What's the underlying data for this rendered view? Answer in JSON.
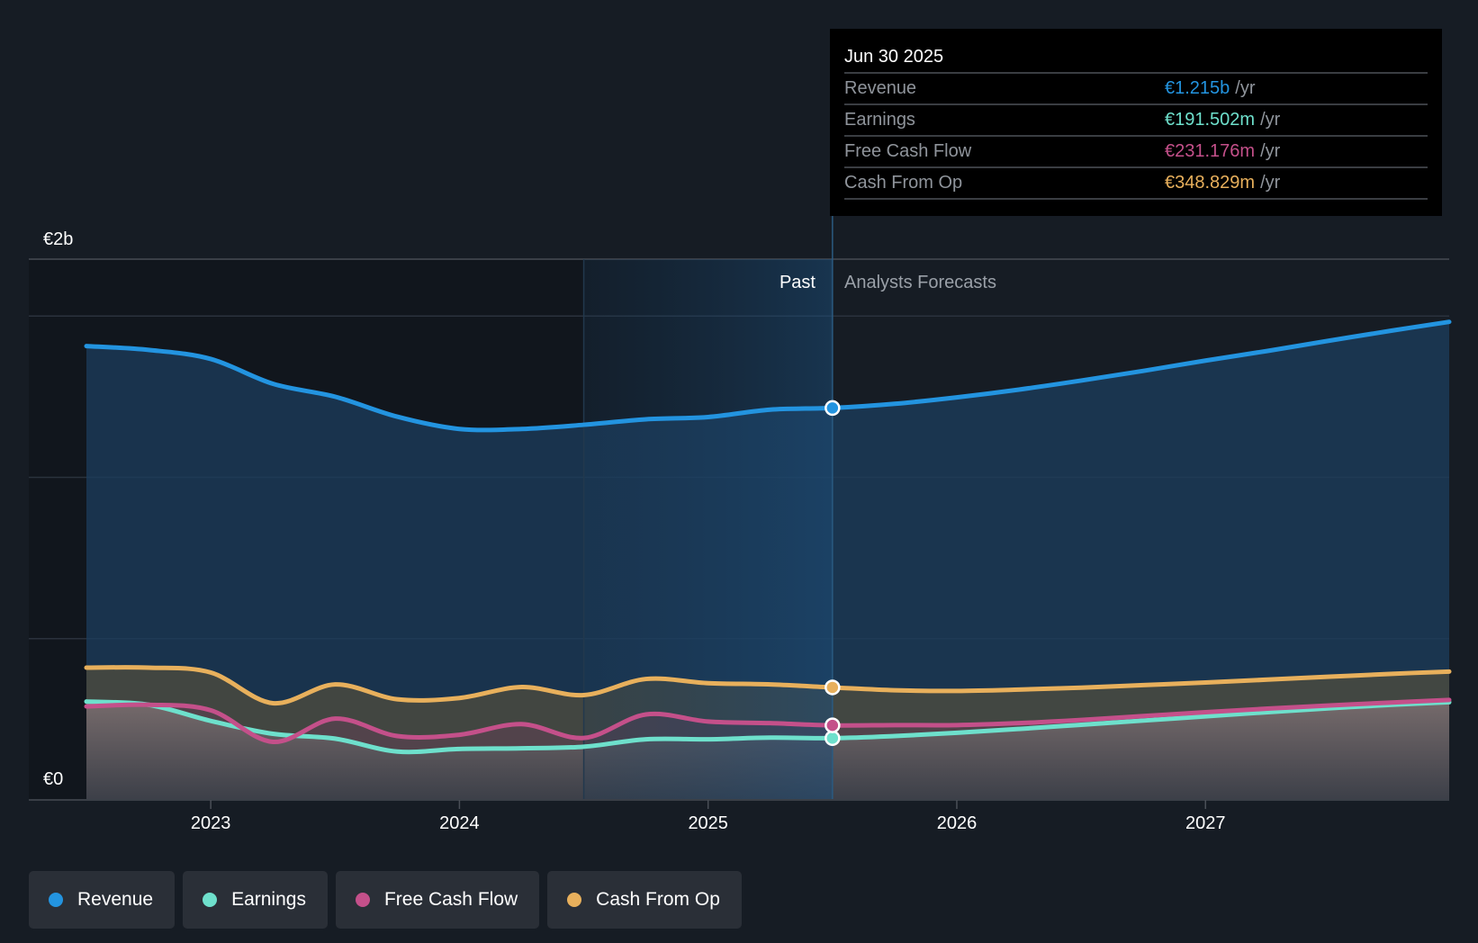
{
  "chart_data": {
    "type": "area",
    "title": "",
    "xlabel": "",
    "ylabel": "",
    "currency": "€",
    "y_tick_labels": [
      "€0",
      "€2b"
    ],
    "x_tick_labels": [
      "2023",
      "2024",
      "2025",
      "2026",
      "2027"
    ],
    "x_ticks": [
      2023,
      2024,
      2025,
      2026,
      2027
    ],
    "ylim": [
      0,
      1600
    ],
    "y_gridlines_m": [
      500,
      1000,
      1500
    ],
    "x_range": [
      2022.5,
      2027.98
    ],
    "past_label": "Past",
    "forecast_label": "Analysts Forecasts",
    "divider_x": 2025.5,
    "highlight_start_x": 2024.5,
    "series": [
      {
        "name": "Revenue",
        "color": "#2394e0",
        "unit": "m",
        "points": [
          [
            2022.5,
            1407
          ],
          [
            2022.75,
            1395
          ],
          [
            2023.0,
            1367
          ],
          [
            2023.25,
            1290
          ],
          [
            2023.5,
            1250
          ],
          [
            2023.75,
            1188
          ],
          [
            2024.0,
            1150
          ],
          [
            2024.25,
            1150
          ],
          [
            2024.5,
            1163
          ],
          [
            2024.75,
            1180
          ],
          [
            2025.0,
            1187
          ],
          [
            2025.25,
            1210
          ],
          [
            2025.5,
            1215
          ],
          [
            2025.75,
            1228
          ],
          [
            2026.0,
            1248
          ],
          [
            2026.25,
            1272
          ],
          [
            2026.5,
            1300
          ],
          [
            2026.75,
            1330
          ],
          [
            2027.0,
            1362
          ],
          [
            2027.25,
            1392
          ],
          [
            2027.5,
            1424
          ],
          [
            2027.75,
            1455
          ],
          [
            2027.98,
            1482
          ]
        ]
      },
      {
        "name": "Earnings",
        "color": "#6ee0cc",
        "unit": "m",
        "points": [
          [
            2022.5,
            305
          ],
          [
            2022.75,
            295
          ],
          [
            2023.0,
            245
          ],
          [
            2023.25,
            205
          ],
          [
            2023.5,
            190
          ],
          [
            2023.75,
            150
          ],
          [
            2024.0,
            158
          ],
          [
            2024.25,
            160
          ],
          [
            2024.5,
            165
          ],
          [
            2024.75,
            188
          ],
          [
            2025.0,
            188
          ],
          [
            2025.25,
            193
          ],
          [
            2025.5,
            191.5
          ],
          [
            2025.75,
            198
          ],
          [
            2026.0,
            208
          ],
          [
            2026.25,
            220
          ],
          [
            2026.5,
            233
          ],
          [
            2026.75,
            246
          ],
          [
            2027.0,
            259
          ],
          [
            2027.25,
            272
          ],
          [
            2027.5,
            284
          ],
          [
            2027.75,
            295
          ],
          [
            2027.98,
            303
          ]
        ]
      },
      {
        "name": "Free Cash Flow",
        "color": "#c4508a",
        "unit": "m",
        "points": [
          [
            2022.5,
            290
          ],
          [
            2022.75,
            295
          ],
          [
            2023.0,
            278
          ],
          [
            2023.25,
            180
          ],
          [
            2023.5,
            252
          ],
          [
            2023.75,
            198
          ],
          [
            2024.0,
            202
          ],
          [
            2024.25,
            235
          ],
          [
            2024.5,
            192
          ],
          [
            2024.75,
            265
          ],
          [
            2025.0,
            243
          ],
          [
            2025.25,
            238
          ],
          [
            2025.5,
            231.2
          ],
          [
            2025.75,
            232
          ],
          [
            2026.0,
            232
          ],
          [
            2026.25,
            238
          ],
          [
            2026.5,
            248
          ],
          [
            2026.75,
            260
          ],
          [
            2027.0,
            272
          ],
          [
            2027.25,
            283
          ],
          [
            2027.5,
            293
          ],
          [
            2027.75,
            302
          ],
          [
            2027.98,
            310
          ]
        ]
      },
      {
        "name": "Cash From Op",
        "color": "#e8b05c",
        "unit": "m",
        "points": [
          [
            2022.5,
            410
          ],
          [
            2022.75,
            410
          ],
          [
            2023.0,
            395
          ],
          [
            2023.25,
            300
          ],
          [
            2023.5,
            358
          ],
          [
            2023.75,
            312
          ],
          [
            2024.0,
            316
          ],
          [
            2024.25,
            350
          ],
          [
            2024.5,
            325
          ],
          [
            2024.75,
            375
          ],
          [
            2025.0,
            362
          ],
          [
            2025.25,
            358
          ],
          [
            2025.5,
            348.8
          ],
          [
            2025.75,
            340
          ],
          [
            2026.0,
            338
          ],
          [
            2026.25,
            342
          ],
          [
            2026.5,
            348
          ],
          [
            2026.75,
            356
          ],
          [
            2027.0,
            364
          ],
          [
            2027.25,
            373
          ],
          [
            2027.5,
            382
          ],
          [
            2027.75,
            391
          ],
          [
            2027.98,
            398
          ]
        ]
      }
    ]
  },
  "tooltip": {
    "date": "Jun 30 2025",
    "rows": [
      {
        "label": "Revenue",
        "value": "€1.215b",
        "unit": "/yr",
        "color": "#2394e0"
      },
      {
        "label": "Earnings",
        "value": "€191.502m",
        "unit": "/yr",
        "color": "#6ee0cc"
      },
      {
        "label": "Free Cash Flow",
        "value": "€231.176m",
        "unit": "/yr",
        "color": "#c4508a"
      },
      {
        "label": "Cash From Op",
        "value": "€348.829m",
        "unit": "/yr",
        "color": "#e8b05c"
      }
    ]
  },
  "legend": [
    {
      "label": "Revenue",
      "color": "#2394e0"
    },
    {
      "label": "Earnings",
      "color": "#6ee0cc"
    },
    {
      "label": "Free Cash Flow",
      "color": "#c4508a"
    },
    {
      "label": "Cash From Op",
      "color": "#e8b05c"
    }
  ]
}
